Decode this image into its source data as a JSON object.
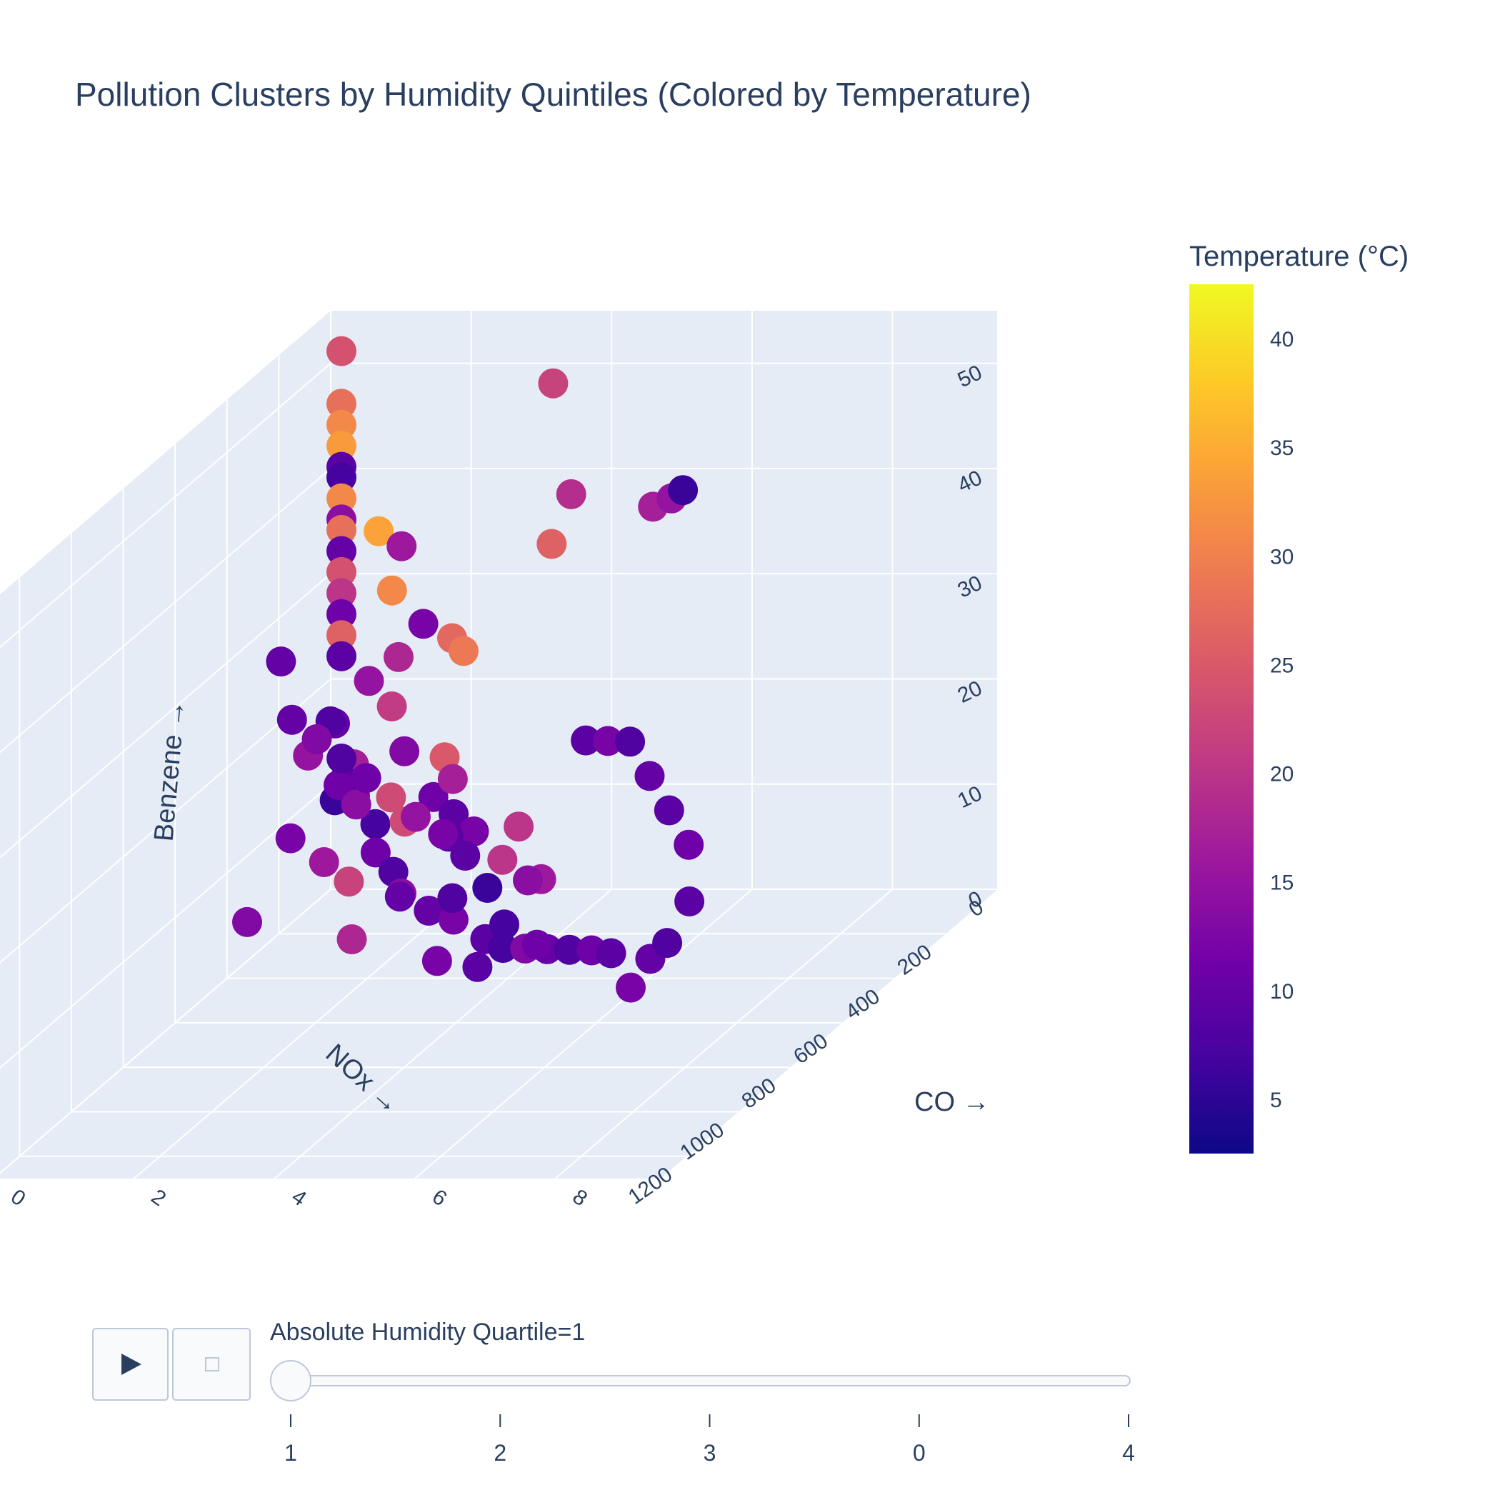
{
  "chart_data": {
    "type": "scatter3d",
    "title": "Pollution Clusters by Humidity Quintiles (Colored by Temperature)",
    "x_axis": {
      "label": "CO →",
      "ticks": [
        0,
        2,
        4,
        6,
        8
      ],
      "range": [
        0,
        9.5
      ]
    },
    "y_axis": {
      "label": "NOx →",
      "ticks": [
        0,
        200,
        400,
        600,
        800,
        1000,
        1200
      ],
      "range": [
        0,
        1300
      ]
    },
    "z_axis": {
      "label": "Benzene →",
      "ticks": [
        0,
        10,
        20,
        30,
        40,
        50
      ],
      "tick_labels": [
        "0",
        "10",
        "20",
        "30",
        "40",
        "50"
      ],
      "range": [
        0,
        55
      ]
    },
    "colorbar": {
      "title": "Temperature (°C)",
      "ticks": [
        5,
        10,
        15,
        20,
        25,
        30,
        35,
        40
      ],
      "range": [
        2.5,
        42.5
      ],
      "colorscale": [
        "#0d0887",
        "#46039f",
        "#7201a8",
        "#9c179e",
        "#bd3786",
        "#d8576b",
        "#ed7953",
        "#fb9f3a",
        "#fdca26",
        "#f0f921"
      ]
    },
    "frame_label": "Absolute Humidity Quartile=1",
    "slider_steps": [
      "1",
      "2",
      "3",
      "0",
      "4"
    ],
    "active_step": 0,
    "points": [
      [
        0.3,
        40,
        52,
        24
      ],
      [
        0.3,
        40,
        47,
        28
      ],
      [
        0.3,
        40,
        45,
        31
      ],
      [
        0.3,
        40,
        43,
        33
      ],
      [
        0.3,
        40,
        41,
        9
      ],
      [
        0.3,
        40,
        40,
        7
      ],
      [
        0.3,
        40,
        38,
        31
      ],
      [
        0.3,
        40,
        36,
        14
      ],
      [
        0.3,
        40,
        35,
        28
      ],
      [
        0.3,
        40,
        33,
        10
      ],
      [
        0.3,
        40,
        31,
        24
      ],
      [
        0.3,
        40,
        29,
        20
      ],
      [
        0.3,
        40,
        27,
        11
      ],
      [
        0.3,
        40,
        25,
        26
      ],
      [
        0.3,
        40,
        23,
        9
      ],
      [
        3.5,
        90,
        50,
        22
      ],
      [
        5.0,
        40,
        38,
        15
      ],
      [
        5.2,
        50,
        39,
        6
      ],
      [
        4.7,
        30,
        37,
        17
      ],
      [
        4.2,
        210,
        42,
        19
      ],
      [
        3.7,
        150,
        36,
        26
      ],
      [
        1.6,
        160,
        36,
        16
      ],
      [
        1.2,
        140,
        37,
        34
      ],
      [
        1.5,
        170,
        32,
        31
      ],
      [
        0.4,
        300,
        28,
        10
      ],
      [
        2.5,
        320,
        32,
        12
      ],
      [
        2.8,
        290,
        30,
        27
      ],
      [
        3.0,
        300,
        29,
        29
      ],
      [
        2.0,
        280,
        28,
        18
      ],
      [
        1.8,
        340,
        27,
        15
      ],
      [
        2.2,
        360,
        25,
        21
      ],
      [
        1.4,
        380,
        24,
        8
      ],
      [
        2.6,
        420,
        22,
        13
      ],
      [
        3.1,
        400,
        21,
        25
      ],
      [
        3.4,
        450,
        20,
        17
      ],
      [
        1.7,
        430,
        19,
        11
      ],
      [
        2.1,
        470,
        18,
        14
      ],
      [
        2.9,
        500,
        17,
        23
      ],
      [
        3.6,
        520,
        16,
        9
      ],
      [
        1.2,
        480,
        15,
        12
      ],
      [
        1.9,
        540,
        14,
        16
      ],
      [
        2.4,
        580,
        13,
        22
      ],
      [
        3.2,
        600,
        12,
        10
      ],
      [
        3.8,
        560,
        11,
        8
      ],
      [
        1.1,
        620,
        10,
        13
      ],
      [
        2.7,
        650,
        9,
        18
      ],
      [
        4.1,
        700,
        8,
        12
      ],
      [
        4.6,
        680,
        7,
        9
      ],
      [
        0.8,
        200,
        20,
        10
      ],
      [
        0.6,
        250,
        18,
        15
      ],
      [
        1.0,
        220,
        15,
        9
      ],
      [
        0.9,
        150,
        12,
        12
      ],
      [
        1.3,
        180,
        10,
        7
      ],
      [
        0.5,
        120,
        11,
        6
      ],
      [
        0.7,
        100,
        14,
        17
      ],
      [
        1.6,
        260,
        9,
        11
      ],
      [
        2.0,
        300,
        8,
        8
      ],
      [
        2.3,
        350,
        7,
        14
      ],
      [
        2.8,
        380,
        6,
        10
      ],
      [
        3.3,
        420,
        6,
        12
      ],
      [
        3.9,
        460,
        5,
        9
      ],
      [
        4.3,
        500,
        5,
        7
      ],
      [
        4.8,
        550,
        6,
        13
      ],
      [
        5.3,
        600,
        7,
        10
      ],
      [
        5.8,
        650,
        8,
        8
      ],
      [
        6.3,
        700,
        9,
        11
      ],
      [
        6.8,
        760,
        10,
        9
      ],
      [
        7.3,
        820,
        8,
        12
      ],
      [
        7.8,
        880,
        12,
        10
      ],
      [
        8.3,
        950,
        15,
        8
      ],
      [
        8.8,
        1000,
        20,
        9
      ],
      [
        6.0,
        900,
        25,
        20
      ],
      [
        6.5,
        1000,
        22,
        14
      ],
      [
        7.0,
        1100,
        18,
        11
      ],
      [
        5.5,
        820,
        14,
        7
      ],
      [
        5.0,
        750,
        16,
        6
      ],
      [
        4.5,
        700,
        18,
        9
      ],
      [
        4.0,
        650,
        19,
        12
      ],
      [
        3.5,
        620,
        20,
        15
      ],
      [
        3.0,
        580,
        21,
        23
      ],
      [
        2.5,
        540,
        22,
        11
      ],
      [
        2.0,
        500,
        23,
        8
      ],
      [
        1.5,
        460,
        24,
        13
      ],
      [
        1.0,
        420,
        25,
        10
      ],
      [
        5.7,
        560,
        26,
        9
      ],
      [
        6.2,
        610,
        27,
        12
      ],
      [
        6.7,
        660,
        28,
        8
      ],
      [
        7.2,
        720,
        26,
        10
      ],
      [
        7.7,
        780,
        24,
        9
      ],
      [
        8.2,
        840,
        22,
        11
      ],
      [
        4.4,
        380,
        9,
        16
      ],
      [
        3.7,
        340,
        10,
        20
      ],
      [
        3.0,
        260,
        11,
        12
      ],
      [
        2.6,
        230,
        12,
        9
      ],
      [
        2.2,
        200,
        13,
        11
      ]
    ]
  }
}
